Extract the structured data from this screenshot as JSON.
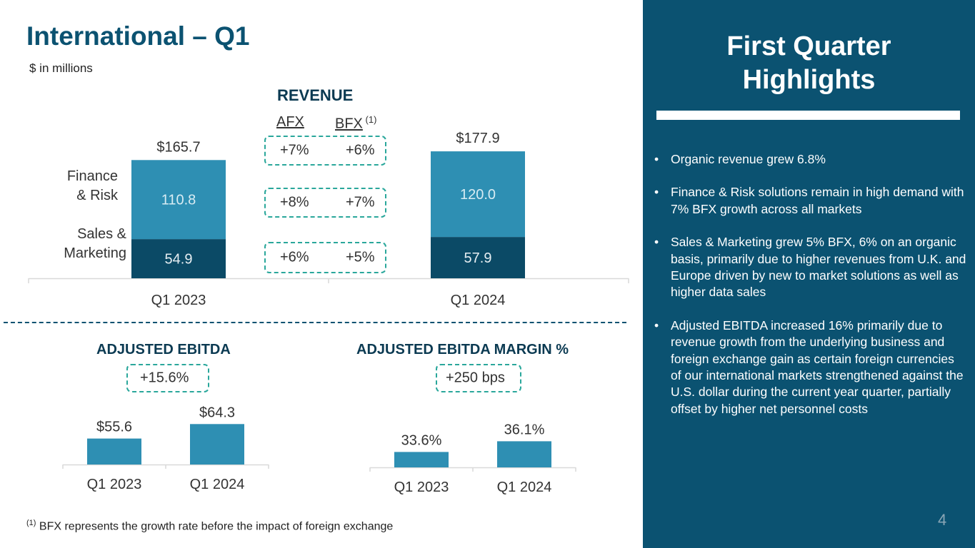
{
  "title": "International – Q1",
  "subtitle": "$ in millions",
  "colors": {
    "dark_teal": "#0b4a66",
    "mid_teal": "#2e8fb3",
    "accent_green": "#2aa79b",
    "panel": "#0b5271"
  },
  "revenue": {
    "title": "REVENUE",
    "afx_header": "AFX",
    "bfx_header": "BFX",
    "bfx_note": "(1)",
    "segments": {
      "finance_risk": "Finance\n& Risk",
      "sales_marketing": "Sales &\nMarketing"
    },
    "growth_rows": [
      {
        "afx": "+7%",
        "bfx": "+6%"
      },
      {
        "afx": "+8%",
        "bfx": "+7%"
      },
      {
        "afx": "+6%",
        "bfx": "+5%"
      }
    ],
    "chart_data": {
      "type": "bar",
      "stacked": true,
      "categories": [
        "Q1 2023",
        "Q1 2024"
      ],
      "series": [
        {
          "name": "Sales & Marketing",
          "values": [
            54.9,
            57.9
          ],
          "labels": [
            "54.9",
            "57.9"
          ]
        },
        {
          "name": "Finance & Risk",
          "values": [
            110.8,
            120.0
          ],
          "labels": [
            "110.8",
            "120.0"
          ]
        }
      ],
      "totals": [
        165.7,
        177.9
      ],
      "total_labels": [
        "$165.7",
        "$177.9"
      ],
      "ylim": [
        0,
        200
      ]
    }
  },
  "ebitda": {
    "title": "ADJUSTED EBITDA",
    "growth": "+15.6%",
    "chart_data": {
      "type": "bar",
      "categories": [
        "Q1 2023",
        "Q1 2024"
      ],
      "values": [
        55.6,
        64.3
      ],
      "value_labels": [
        "$55.6",
        "$64.3"
      ],
      "ylim": [
        40,
        70
      ]
    }
  },
  "margin": {
    "title": "ADJUSTED EBITDA MARGIN %",
    "growth": "+250 bps",
    "chart_data": {
      "type": "bar",
      "categories": [
        "Q1 2023",
        "Q1 2024"
      ],
      "values": [
        33.6,
        36.1
      ],
      "value_labels": [
        "33.6%",
        "36.1%"
      ],
      "ylim": [
        30,
        40
      ]
    }
  },
  "footnote": {
    "marker": "(1)",
    "text": " BFX represents the growth rate before the impact of foreign exchange"
  },
  "page_number": "4",
  "highlights": {
    "title": "First Quarter Highlights",
    "bullets": [
      "Organic revenue grew 6.8%",
      "Finance & Risk solutions remain in high demand with 7% BFX growth across all markets",
      "Sales & Marketing grew 5% BFX, 6% on an organic basis, primarily due to higher revenues from U.K. and Europe driven by new to market solutions as well as higher data sales",
      "Adjusted EBITDA increased 16% primarily due to revenue growth from the underlying business and foreign exchange gain as certain foreign currencies of our international markets strengthened against the U.S. dollar during the current year quarter, partially offset by higher net personnel costs"
    ]
  }
}
